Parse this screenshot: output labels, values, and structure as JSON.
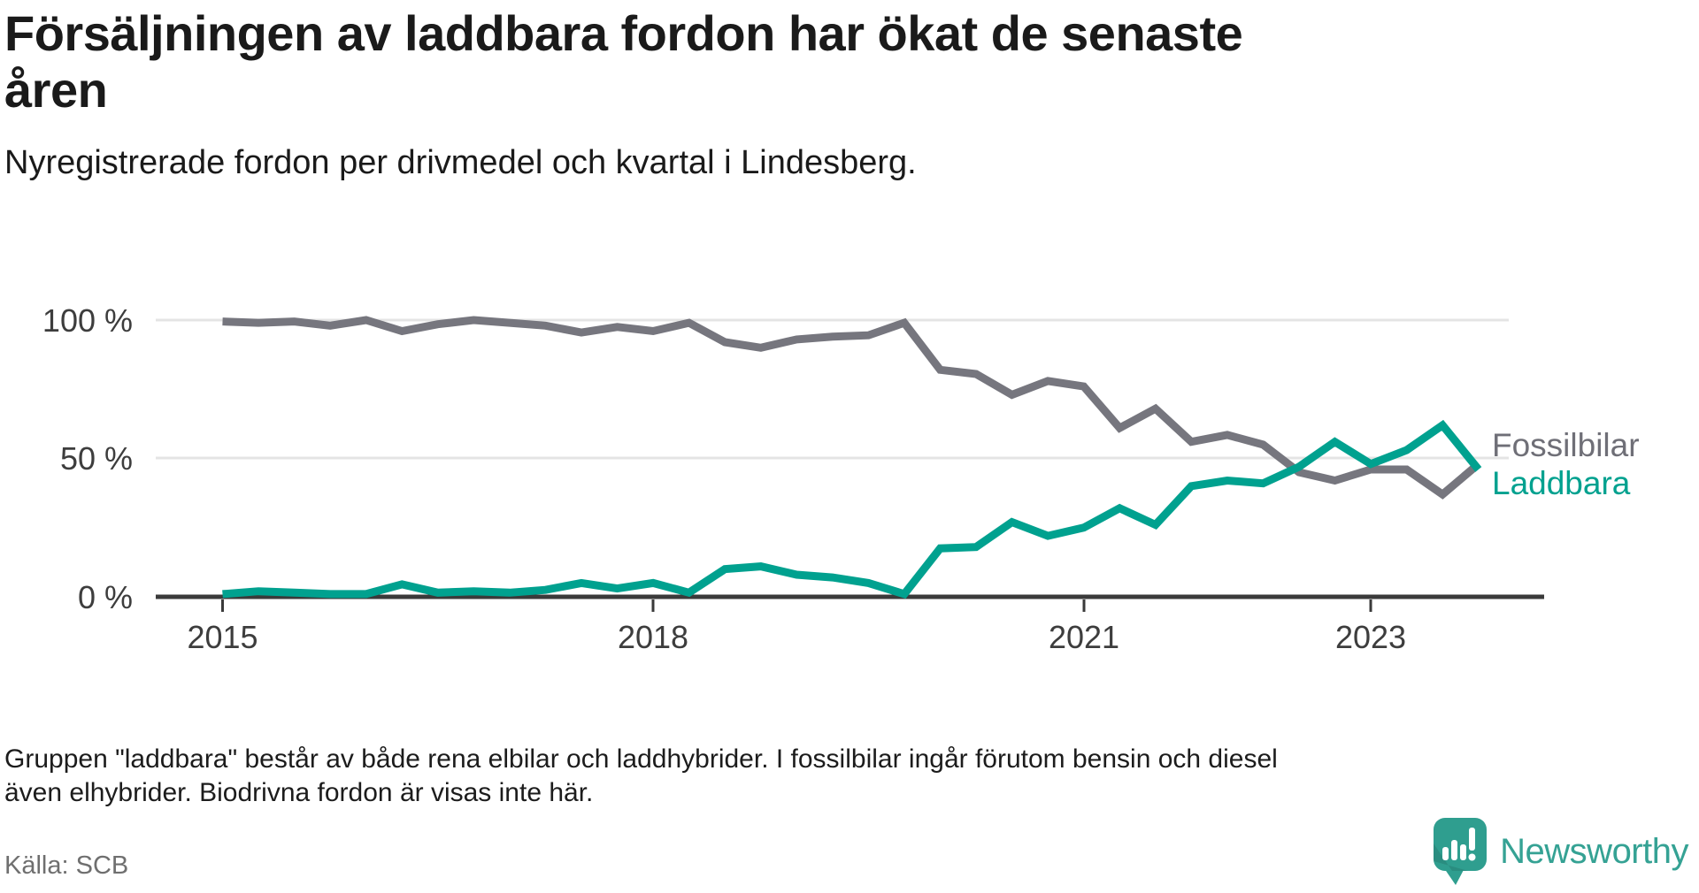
{
  "header": {
    "title": "Försäljningen av laddbara fordon har ökat de senaste åren",
    "subtitle": "Nyregistrerade fordon per drivmedel och kvartal i Lindesberg."
  },
  "chart_data": {
    "type": "line",
    "title": "Försäljningen av laddbara fordon har ökat de senaste åren",
    "subtitle": "Nyregistrerade fordon per drivmedel och kvartal i Lindesberg.",
    "unit": "%",
    "ylim": [
      0,
      100
    ],
    "grid": "horizontal",
    "legend_position": "right-end",
    "y_tick_labels": [
      "100 %",
      "50 %",
      "0 %"
    ],
    "x_tick_labels": [
      "2015",
      "2018",
      "2021",
      "2023"
    ],
    "x_quarters": [
      "2015 Q1",
      "2015 Q2",
      "2015 Q3",
      "2015 Q4",
      "2016 Q1",
      "2016 Q2",
      "2016 Q3",
      "2016 Q4",
      "2017 Q1",
      "2017 Q2",
      "2017 Q3",
      "2017 Q4",
      "2018 Q1",
      "2018 Q2",
      "2018 Q3",
      "2018 Q4",
      "2019 Q1",
      "2019 Q2",
      "2019 Q3",
      "2019 Q4",
      "2020 Q1",
      "2020 Q2",
      "2020 Q3",
      "2020 Q4",
      "2021 Q1",
      "2021 Q2",
      "2021 Q3",
      "2021 Q4",
      "2022 Q1",
      "2022 Q2",
      "2022 Q3",
      "2022 Q4",
      "2023 Q1",
      "2023 Q2",
      "2023 Q3",
      "2023 Q4"
    ],
    "series": [
      {
        "name": "Fossilbilar",
        "color": "#76767e",
        "values": [
          99.5,
          99,
          99.5,
          98,
          100,
          96,
          98.5,
          100,
          99,
          98,
          95.5,
          97.5,
          96,
          99,
          92,
          90,
          93,
          94,
          94.5,
          99,
          82,
          80.5,
          73,
          78,
          76,
          61,
          68,
          56,
          58.5,
          55,
          45,
          42,
          46,
          46,
          37,
          48
        ]
      },
      {
        "name": "Laddbara",
        "color": "#00a18f",
        "values": [
          1,
          2,
          1.5,
          1,
          1,
          4.5,
          1.5,
          2,
          1.5,
          2.5,
          5,
          3,
          5,
          1.5,
          10,
          11,
          8,
          7,
          5,
          1,
          17.5,
          18,
          27,
          22,
          25,
          32,
          26,
          40,
          42,
          41,
          47,
          56,
          48,
          53,
          62,
          46
        ]
      }
    ]
  },
  "footer": {
    "note": "Gruppen \"laddbara\" består av både rena elbilar och laddhybrider. I fossilbilar ingår förutom bensin och diesel även elhybrider. Biodrivna fordon är visas inte här.",
    "source": "Källa: SCB",
    "brand": "Newsworthy"
  }
}
